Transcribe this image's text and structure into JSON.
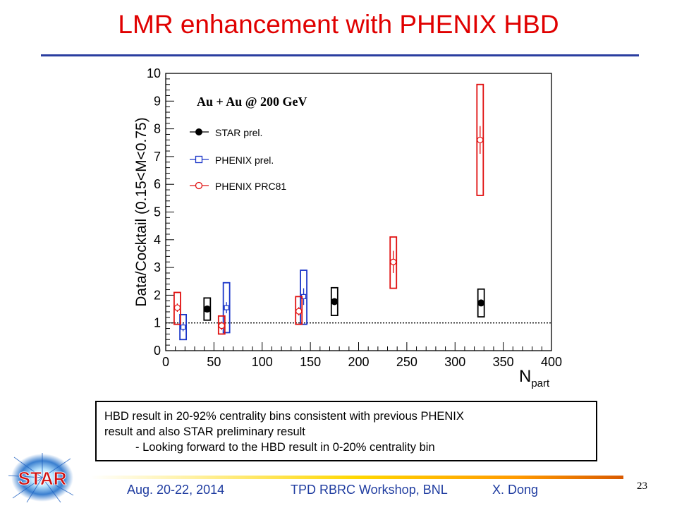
{
  "slide": {
    "title": "LMR enhancement with PHENIX HBD",
    "note_line1": "HBD result in 20-92% centrality bins consistent with previous PHENIX",
    "note_line2": "result and also STAR preliminary result",
    "note_line3": "-  Looking forward to the HBD result in 0-20% centrality bin",
    "footer_date": "Aug. 20-22, 2014",
    "footer_event": "TPD RBRC Workshop, BNL",
    "footer_author": "X. Dong",
    "page_number": "23",
    "logo_text": "STAR"
  },
  "chart_data": {
    "type": "scatter",
    "ylabel": "Data/Cocktail (0.15<M<0.75)",
    "xlabel_main": "N",
    "xlabel_sub": "part",
    "annotation": "Au + Au @ 200 GeV",
    "xlim": [
      0,
      400
    ],
    "ylim": [
      0,
      10
    ],
    "xticks": [
      0,
      50,
      100,
      150,
      200,
      250,
      300,
      350,
      400
    ],
    "yticks": [
      0,
      1,
      2,
      3,
      4,
      5,
      6,
      7,
      8,
      9,
      10
    ],
    "reference_line_y": 1,
    "grid": false,
    "legend_placement": "upper-left",
    "series": [
      {
        "name": "STAR prel.",
        "color": "#000000",
        "marker": "filled-circle",
        "points": [
          {
            "x": 43,
            "y": 1.5,
            "err": 0.1,
            "sys_lo": 1.1,
            "sys_hi": 1.9
          },
          {
            "x": 175,
            "y": 1.77,
            "err": 0.1,
            "sys_lo": 1.27,
            "sys_hi": 2.27
          },
          {
            "x": 327,
            "y": 1.72,
            "err": 0.1,
            "sys_lo": 1.22,
            "sys_hi": 2.22
          }
        ]
      },
      {
        "name": "PHENIX prel.",
        "color": "#1a35c8",
        "marker": "open-square",
        "points": [
          {
            "x": 18,
            "y": 0.85,
            "err": 0.15,
            "sys_lo": 0.4,
            "sys_hi": 1.3
          },
          {
            "x": 63,
            "y": 1.55,
            "err": 0.2,
            "sys_lo": 0.65,
            "sys_hi": 2.45
          },
          {
            "x": 143,
            "y": 1.95,
            "err": 0.3,
            "sys_lo": 0.95,
            "sys_hi": 2.9
          }
        ]
      },
      {
        "name": "PHENIX PRC81",
        "color": "#e01010",
        "marker": "open-circle",
        "points": [
          {
            "x": 12,
            "y": 1.55,
            "err": 0.15,
            "sys_lo": 0.95,
            "sys_hi": 2.1
          },
          {
            "x": 58,
            "y": 0.9,
            "err": 0.15,
            "sys_lo": 0.6,
            "sys_hi": 1.25
          },
          {
            "x": 138,
            "y": 1.42,
            "err": 0.15,
            "sys_lo": 0.95,
            "sys_hi": 1.95
          },
          {
            "x": 236,
            "y": 3.2,
            "err": 0.4,
            "sys_lo": 2.25,
            "sys_hi": 4.1
          },
          {
            "x": 326,
            "y": 7.6,
            "err": 0.5,
            "sys_lo": 5.6,
            "sys_hi": 9.6
          }
        ]
      }
    ]
  }
}
